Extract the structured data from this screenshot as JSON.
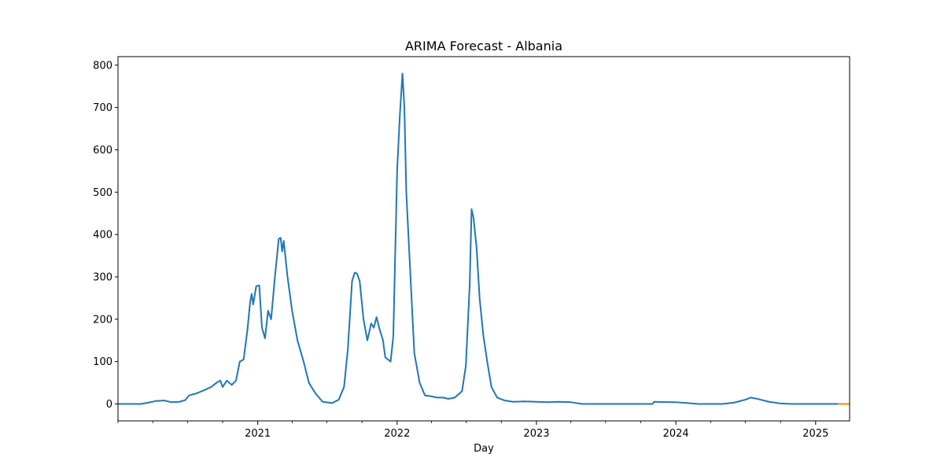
{
  "chart_data": {
    "type": "line",
    "title": "ARIMA Forecast - Albania",
    "xlabel": "Day",
    "ylabel": "",
    "grid": false,
    "legend": "none",
    "x_major_ticks": [
      "2021-01-01",
      "2022-01-01",
      "2023-01-01",
      "2024-01-01",
      "2025-01-01"
    ],
    "x_tick_labels": [
      "2021",
      "2022",
      "2023",
      "2024",
      "2025"
    ],
    "xlim": [
      "2020-01-01",
      "2025-03-31"
    ],
    "ylim": [
      -40,
      820
    ],
    "y_ticks": [
      0,
      100,
      200,
      300,
      400,
      500,
      600,
      700,
      800
    ],
    "series": [
      {
        "color": "#1f77b4",
        "points": [
          [
            "2020-01-01",
            0
          ],
          [
            "2020-03-01",
            0
          ],
          [
            "2020-03-20",
            3
          ],
          [
            "2020-04-10",
            7
          ],
          [
            "2020-05-01",
            8
          ],
          [
            "2020-05-20",
            4
          ],
          [
            "2020-06-10",
            5
          ],
          [
            "2020-06-25",
            9
          ],
          [
            "2020-07-05",
            20
          ],
          [
            "2020-07-25",
            25
          ],
          [
            "2020-08-15",
            33
          ],
          [
            "2020-09-01",
            40
          ],
          [
            "2020-09-15",
            50
          ],
          [
            "2020-09-25",
            55
          ],
          [
            "2020-10-01",
            40
          ],
          [
            "2020-10-12",
            55
          ],
          [
            "2020-10-25",
            45
          ],
          [
            "2020-11-05",
            55
          ],
          [
            "2020-11-15",
            100
          ],
          [
            "2020-11-25",
            105
          ],
          [
            "2020-12-05",
            175
          ],
          [
            "2020-12-12",
            240
          ],
          [
            "2020-12-16",
            260
          ],
          [
            "2020-12-20",
            235
          ],
          [
            "2020-12-28",
            278
          ],
          [
            "2021-01-05",
            280
          ],
          [
            "2021-01-12",
            180
          ],
          [
            "2021-01-20",
            155
          ],
          [
            "2021-01-28",
            220
          ],
          [
            "2021-02-05",
            200
          ],
          [
            "2021-02-15",
            300
          ],
          [
            "2021-02-25",
            390
          ],
          [
            "2021-03-02",
            392
          ],
          [
            "2021-03-06",
            360
          ],
          [
            "2021-03-10",
            385
          ],
          [
            "2021-03-20",
            300
          ],
          [
            "2021-04-01",
            220
          ],
          [
            "2021-04-15",
            150
          ],
          [
            "2021-05-01",
            100
          ],
          [
            "2021-05-15",
            50
          ],
          [
            "2021-06-01",
            25
          ],
          [
            "2021-06-20",
            5
          ],
          [
            "2021-07-15",
            2
          ],
          [
            "2021-08-01",
            10
          ],
          [
            "2021-08-15",
            40
          ],
          [
            "2021-08-25",
            130
          ],
          [
            "2021-09-05",
            290
          ],
          [
            "2021-09-12",
            310
          ],
          [
            "2021-09-18",
            308
          ],
          [
            "2021-09-25",
            290
          ],
          [
            "2021-10-05",
            200
          ],
          [
            "2021-10-15",
            150
          ],
          [
            "2021-10-25",
            190
          ],
          [
            "2021-11-01",
            180
          ],
          [
            "2021-11-08",
            205
          ],
          [
            "2021-11-15",
            180
          ],
          [
            "2021-11-25",
            150
          ],
          [
            "2021-12-01",
            110
          ],
          [
            "2021-12-15",
            100
          ],
          [
            "2021-12-22",
            160
          ],
          [
            "2022-01-01",
            550
          ],
          [
            "2022-01-08",
            680
          ],
          [
            "2022-01-15",
            780
          ],
          [
            "2022-01-20",
            700
          ],
          [
            "2022-01-25",
            500
          ],
          [
            "2022-02-05",
            300
          ],
          [
            "2022-02-15",
            120
          ],
          [
            "2022-03-01",
            50
          ],
          [
            "2022-03-15",
            20
          ],
          [
            "2022-04-01",
            18
          ],
          [
            "2022-04-15",
            15
          ],
          [
            "2022-05-01",
            15
          ],
          [
            "2022-05-15",
            12
          ],
          [
            "2022-06-01",
            15
          ],
          [
            "2022-06-20",
            30
          ],
          [
            "2022-06-30",
            90
          ],
          [
            "2022-07-10",
            280
          ],
          [
            "2022-07-15",
            460
          ],
          [
            "2022-07-20",
            440
          ],
          [
            "2022-07-28",
            370
          ],
          [
            "2022-08-05",
            250
          ],
          [
            "2022-08-15",
            160
          ],
          [
            "2022-08-25",
            100
          ],
          [
            "2022-09-05",
            40
          ],
          [
            "2022-09-20",
            15
          ],
          [
            "2022-10-10",
            8
          ],
          [
            "2022-11-01",
            5
          ],
          [
            "2022-12-01",
            6
          ],
          [
            "2023-01-01",
            5
          ],
          [
            "2023-02-01",
            4
          ],
          [
            "2023-03-01",
            5
          ],
          [
            "2023-04-01",
            4
          ],
          [
            "2023-05-01",
            0
          ],
          [
            "2023-06-01",
            0
          ],
          [
            "2023-11-01",
            0
          ],
          [
            "2023-11-05",
            5
          ],
          [
            "2023-12-15",
            4
          ],
          [
            "2024-01-01",
            4
          ],
          [
            "2024-02-01",
            2
          ],
          [
            "2024-03-01",
            0
          ],
          [
            "2024-05-01",
            0
          ],
          [
            "2024-06-01",
            3
          ],
          [
            "2024-07-01",
            10
          ],
          [
            "2024-07-15",
            15
          ],
          [
            "2024-08-01",
            12
          ],
          [
            "2024-09-01",
            5
          ],
          [
            "2024-10-01",
            1
          ],
          [
            "2024-11-01",
            0
          ],
          [
            "2025-03-01",
            0
          ]
        ]
      },
      {
        "color": "#ff7f0e",
        "points": [
          [
            "2025-03-01",
            0
          ],
          [
            "2025-03-31",
            0
          ]
        ]
      }
    ]
  }
}
